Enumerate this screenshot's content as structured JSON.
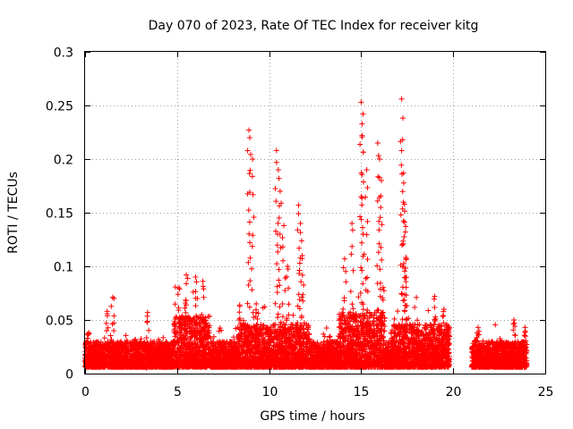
{
  "chart_data": {
    "type": "scatter",
    "title": "Day 070 of 2023, Rate Of TEC Index for receiver kitg",
    "xlabel": "GPS time / hours",
    "ylabel": "ROTI / TECUs",
    "xlim": [
      0,
      25
    ],
    "ylim": [
      0,
      0.3
    ],
    "x_ticks": [
      0,
      5,
      10,
      15,
      20,
      25
    ],
    "x_tick_labels": [
      "0",
      "5",
      "10",
      "15",
      "20",
      "25"
    ],
    "y_ticks": [
      0,
      0.05,
      0.1,
      0.15,
      0.2,
      0.25,
      0.3
    ],
    "y_tick_labels": [
      "0",
      "0.05",
      "0.1",
      "0.15",
      "0.2",
      "0.25",
      "0.3"
    ],
    "grid": true,
    "marker": "+",
    "color": "#ff0000",
    "data_gap_hours": [
      19.8,
      21.0
    ],
    "series": [
      {
        "name": "ROTI",
        "peaks": [
          {
            "x": 0.2,
            "y": 0.038
          },
          {
            "x": 1.2,
            "y": 0.058
          },
          {
            "x": 1.5,
            "y": 0.071
          },
          {
            "x": 3.4,
            "y": 0.057
          },
          {
            "x": 5.1,
            "y": 0.08
          },
          {
            "x": 5.5,
            "y": 0.092
          },
          {
            "x": 6.0,
            "y": 0.09
          },
          {
            "x": 6.4,
            "y": 0.086
          },
          {
            "x": 8.4,
            "y": 0.064
          },
          {
            "x": 8.9,
            "y": 0.227
          },
          {
            "x": 8.95,
            "y": 0.22
          },
          {
            "x": 9.1,
            "y": 0.2
          },
          {
            "x": 9.3,
            "y": 0.065
          },
          {
            "x": 10.4,
            "y": 0.208
          },
          {
            "x": 10.5,
            "y": 0.19
          },
          {
            "x": 10.6,
            "y": 0.17
          },
          {
            "x": 10.8,
            "y": 0.138
          },
          {
            "x": 11.0,
            "y": 0.1
          },
          {
            "x": 11.6,
            "y": 0.157
          },
          {
            "x": 11.7,
            "y": 0.14
          },
          {
            "x": 11.8,
            "y": 0.11
          },
          {
            "x": 14.1,
            "y": 0.107
          },
          {
            "x": 14.5,
            "y": 0.14
          },
          {
            "x": 15.0,
            "y": 0.253
          },
          {
            "x": 15.1,
            "y": 0.242
          },
          {
            "x": 15.05,
            "y": 0.222
          },
          {
            "x": 15.3,
            "y": 0.19
          },
          {
            "x": 15.9,
            "y": 0.215
          },
          {
            "x": 16.0,
            "y": 0.2
          },
          {
            "x": 16.1,
            "y": 0.18
          },
          {
            "x": 17.2,
            "y": 0.256
          },
          {
            "x": 17.25,
            "y": 0.218
          },
          {
            "x": 17.3,
            "y": 0.187
          },
          {
            "x": 17.35,
            "y": 0.158
          },
          {
            "x": 17.4,
            "y": 0.132
          },
          {
            "x": 17.45,
            "y": 0.107
          },
          {
            "x": 19.0,
            "y": 0.072
          },
          {
            "x": 19.5,
            "y": 0.06
          },
          {
            "x": 21.3,
            "y": 0.038
          },
          {
            "x": 23.3,
            "y": 0.05
          },
          {
            "x": 23.9,
            "y": 0.043
          }
        ]
      }
    ]
  }
}
